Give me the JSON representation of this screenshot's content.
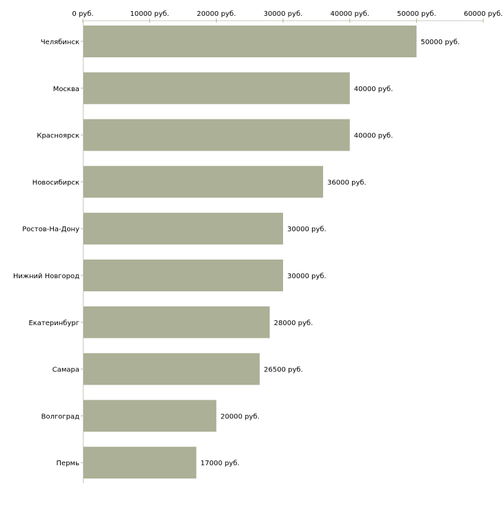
{
  "chart_data": {
    "type": "bar",
    "orientation": "horizontal",
    "title": "",
    "xlabel": "",
    "ylabel": "",
    "xlim": [
      0,
      60000
    ],
    "x_ticks": [
      0,
      10000,
      20000,
      30000,
      40000,
      50000,
      60000
    ],
    "x_tick_labels": [
      "0 руб.",
      "10000 руб.",
      "20000 руб.",
      "30000 руб.",
      "40000 руб.",
      "50000 руб.",
      "60000 руб."
    ],
    "axis_position": "top",
    "grid": false,
    "categories": [
      "Челябинск",
      "Москва",
      "Красноярск",
      "Новосибирск",
      "Ростов-На-Дону",
      "Нижний Новгород",
      "Екатеринбург",
      "Самара",
      "Волгоград",
      "Пермь"
    ],
    "values": [
      50000,
      40000,
      40000,
      36000,
      30000,
      30000,
      28000,
      26500,
      20000,
      17000
    ],
    "data_labels": [
      "50000 руб.",
      "40000 руб.",
      "40000 руб.",
      "36000 руб.",
      "30000 руб.",
      "30000 руб.",
      "28000 руб.",
      "26500 руб.",
      "20000 руб.",
      "17000 руб."
    ],
    "colors": {
      "bar": "#abb096",
      "axis": "#c8c8c0",
      "tick": "#b4b48c"
    }
  }
}
